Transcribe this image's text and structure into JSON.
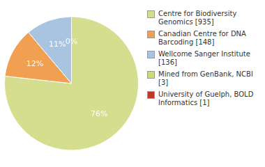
{
  "chart_data": {
    "type": "pie",
    "categories": [
      "Centre for Biodiversity\nGenomics [935]",
      "Canadian Centre for DNA\nBarcoding [148]",
      "Wellcome Sanger Institute [136]",
      "Mined from GenBank, NCBI [3]",
      "University of Guelph, BOLD\nInformatics [1]"
    ],
    "values": [
      76,
      12,
      11,
      0,
      0
    ],
    "value_labels": [
      "76%",
      "12%",
      "11%",
      "0%",
      null
    ],
    "colors": [
      "#d4de8e",
      "#f0a050",
      "#a8c4e0",
      "#c8de70",
      "#c0392b"
    ],
    "data_labels": true,
    "legend": "right"
  }
}
